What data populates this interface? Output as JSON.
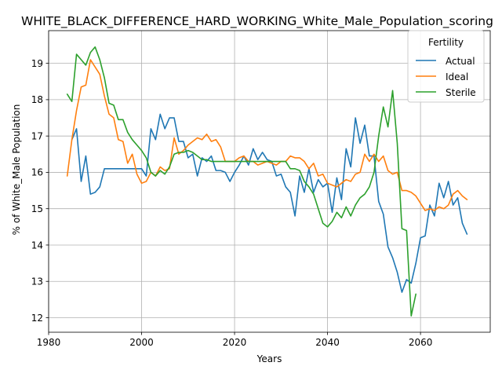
{
  "chart_data": {
    "type": "line",
    "title": "WHITE_BLACK_DIFFERENCE_HARD_WORKING_White_Male_Population_scoring",
    "xlabel": "Years",
    "ylabel": "% of White_Male Population",
    "xlim": [
      1980,
      2075
    ],
    "ylim": [
      11.6,
      19.9
    ],
    "xticks": [
      1980,
      2000,
      2020,
      2040,
      2060
    ],
    "yticks": [
      12,
      13,
      14,
      15,
      16,
      17,
      18,
      19
    ],
    "grid": true,
    "legend": {
      "title": "Fertility",
      "position": "top-right"
    },
    "series": [
      {
        "name": "Actual",
        "color": "#1f77b4",
        "x": [
          1985,
          1986,
          1987,
          1988,
          1989,
          1990,
          1991,
          1992,
          1993,
          1994,
          1995,
          1996,
          1997,
          1998,
          1999,
          2000,
          2001,
          2002,
          2003,
          2004,
          2005,
          2006,
          2007,
          2008,
          2009,
          2010,
          2011,
          2012,
          2013,
          2014,
          2015,
          2016,
          2017,
          2018,
          2019,
          2020,
          2021,
          2022,
          2023,
          2024,
          2025,
          2026,
          2027,
          2028,
          2029,
          2030,
          2031,
          2032,
          2033,
          2034,
          2035,
          2036,
          2037,
          2038,
          2039,
          2040,
          2041,
          2042,
          2043,
          2044,
          2045,
          2046,
          2047,
          2048,
          2049,
          2050,
          2051,
          2052,
          2053,
          2054,
          2055,
          2056,
          2057,
          2058,
          2059,
          2060,
          2061,
          2062,
          2063,
          2064,
          2065,
          2066,
          2067,
          2068,
          2069,
          2070
        ],
        "values": [
          16.9,
          17.2,
          15.75,
          16.45,
          15.4,
          15.45,
          15.6,
          16.1,
          16.1,
          16.1,
          16.1,
          16.1,
          16.1,
          16.1,
          16.1,
          16.1,
          15.9,
          17.2,
          16.9,
          17.6,
          17.2,
          17.5,
          17.5,
          16.85,
          16.85,
          16.4,
          16.5,
          15.9,
          16.4,
          16.3,
          16.45,
          16.05,
          16.05,
          16.0,
          15.75,
          16.0,
          16.2,
          16.45,
          16.2,
          16.65,
          16.35,
          16.55,
          16.35,
          16.3,
          15.9,
          15.95,
          15.6,
          15.45,
          14.8,
          15.9,
          15.45,
          16.1,
          15.45,
          15.8,
          15.6,
          15.7,
          14.9,
          15.85,
          15.25,
          16.65,
          16.15,
          17.5,
          16.8,
          17.3,
          16.45,
          16.45,
          15.2,
          14.85,
          13.95,
          13.65,
          13.25,
          12.7,
          13.05,
          12.95,
          13.5,
          14.2,
          14.25,
          15.1,
          14.8,
          15.7,
          15.3,
          15.75,
          15.1,
          15.3,
          14.6,
          14.3
        ]
      },
      {
        "name": "Ideal",
        "color": "#ff7f0e",
        "x": [
          1984,
          1985,
          1986,
          1987,
          1988,
          1989,
          1990,
          1991,
          1992,
          1993,
          1994,
          1995,
          1996,
          1997,
          1998,
          1999,
          2000,
          2001,
          2002,
          2003,
          2004,
          2005,
          2006,
          2007,
          2008,
          2009,
          2010,
          2011,
          2012,
          2013,
          2014,
          2015,
          2016,
          2017,
          2018,
          2019,
          2020,
          2021,
          2022,
          2023,
          2024,
          2025,
          2026,
          2027,
          2028,
          2029,
          2030,
          2031,
          2032,
          2033,
          2034,
          2035,
          2036,
          2037,
          2038,
          2039,
          2040,
          2041,
          2042,
          2043,
          2044,
          2045,
          2046,
          2047,
          2048,
          2049,
          2050,
          2051,
          2052,
          2053,
          2054,
          2055,
          2056,
          2057,
          2058,
          2059,
          2060,
          2061,
          2062,
          2063,
          2064,
          2065,
          2066,
          2067,
          2068,
          2069,
          2070
        ],
        "values": [
          15.9,
          16.9,
          17.7,
          18.35,
          18.4,
          19.1,
          18.9,
          18.7,
          18.1,
          17.6,
          17.5,
          16.9,
          16.85,
          16.25,
          16.5,
          15.95,
          15.7,
          15.75,
          16.0,
          15.9,
          16.15,
          16.05,
          16.1,
          16.95,
          16.5,
          16.6,
          16.75,
          16.85,
          16.95,
          16.9,
          17.05,
          16.85,
          16.9,
          16.7,
          16.3,
          16.3,
          16.3,
          16.4,
          16.45,
          16.3,
          16.3,
          16.2,
          16.25,
          16.3,
          16.25,
          16.2,
          16.3,
          16.3,
          16.45,
          16.4,
          16.4,
          16.3,
          16.1,
          16.25,
          15.9,
          15.95,
          15.7,
          15.65,
          15.6,
          15.7,
          15.8,
          15.75,
          15.95,
          16.0,
          16.5,
          16.3,
          16.5,
          16.3,
          16.45,
          16.05,
          15.95,
          16.0,
          15.5,
          15.5,
          15.45,
          15.35,
          15.15,
          14.95,
          15.0,
          14.95,
          15.05,
          15.0,
          15.1,
          15.4,
          15.5,
          15.35,
          15.25
        ]
      },
      {
        "name": "Sterile",
        "color": "#2ca02c",
        "x": [
          1984,
          1985,
          1986,
          1987,
          1988,
          1989,
          1990,
          1991,
          1992,
          1993,
          1994,
          1995,
          1996,
          1997,
          1998,
          1999,
          2000,
          2001,
          2002,
          2003,
          2004,
          2005,
          2006,
          2007,
          2008,
          2009,
          2010,
          2011,
          2012,
          2013,
          2014,
          2015,
          2016,
          2017,
          2018,
          2019,
          2020,
          2021,
          2022,
          2023,
          2024,
          2025,
          2026,
          2027,
          2028,
          2029,
          2030,
          2031,
          2032,
          2033,
          2034,
          2035,
          2036,
          2037,
          2038,
          2039,
          2040,
          2041,
          2042,
          2043,
          2044,
          2045,
          2046,
          2047,
          2048,
          2049,
          2050,
          2051,
          2052,
          2053,
          2054,
          2055,
          2056,
          2057,
          2058,
          2059
        ],
        "values": [
          18.15,
          17.95,
          19.25,
          19.1,
          18.95,
          19.3,
          19.45,
          19.1,
          18.6,
          17.9,
          17.85,
          17.45,
          17.45,
          17.1,
          16.9,
          16.75,
          16.6,
          16.4,
          16.0,
          15.9,
          16.05,
          15.95,
          16.15,
          16.5,
          16.55,
          16.55,
          16.6,
          16.55,
          16.45,
          16.35,
          16.35,
          16.3,
          16.3,
          16.3,
          16.3,
          16.3,
          16.3,
          16.3,
          16.3,
          16.3,
          16.3,
          16.3,
          16.3,
          16.3,
          16.3,
          16.3,
          16.3,
          16.3,
          16.1,
          16.1,
          16.05,
          15.75,
          15.6,
          15.4,
          15.0,
          14.6,
          14.5,
          14.65,
          14.9,
          14.75,
          15.05,
          14.8,
          15.1,
          15.3,
          15.4,
          15.6,
          16.0,
          17.0,
          17.8,
          17.25,
          18.25,
          16.8,
          14.45,
          14.4,
          12.05,
          12.65
        ]
      }
    ]
  }
}
